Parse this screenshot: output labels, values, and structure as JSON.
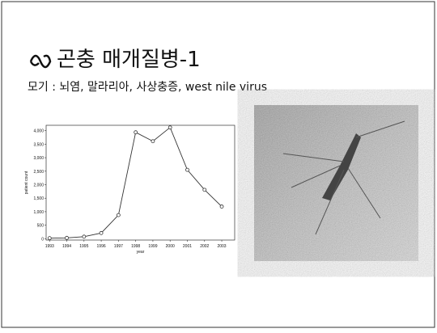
{
  "slide": {
    "title": "곤충 매개질병-1",
    "subtitle": "모기 : 뇌염, 말라리아, 사상충증, west nile virus"
  },
  "chart_data": {
    "type": "line",
    "x_label": "year",
    "y_label": "patient count",
    "x": [
      1993,
      1994,
      1995,
      1996,
      1997,
      1998,
      1999,
      2000,
      2001,
      2002,
      2003
    ],
    "series": [
      {
        "name": "patient count",
        "color": "#333333",
        "values": [
          20,
          30,
          75,
          210,
          875,
          3940,
          3610,
          4120,
          2550,
          1810,
          1190
        ]
      }
    ],
    "xlim": [
      1992.8,
      2003.75
    ],
    "xticks": [
      1993,
      1994,
      1995,
      1996,
      1997,
      1998,
      1999,
      2000,
      2001,
      2002,
      2003
    ],
    "ylim": [
      -50,
      4200
    ],
    "yticks": [
      0,
      {
        "value": 500,
        "label": "500"
      },
      {
        "value": 1000,
        "label": "1,000"
      },
      {
        "value": 1500,
        "label": "1,500"
      },
      {
        "value": 2000,
        "label": "2,000"
      },
      {
        "value": 2500,
        "label": "2,500"
      },
      {
        "value": 3000,
        "label": "3,000"
      },
      {
        "value": 3500,
        "label": "3,500"
      },
      {
        "value": 4000,
        "label": "4,000"
      }
    ]
  }
}
